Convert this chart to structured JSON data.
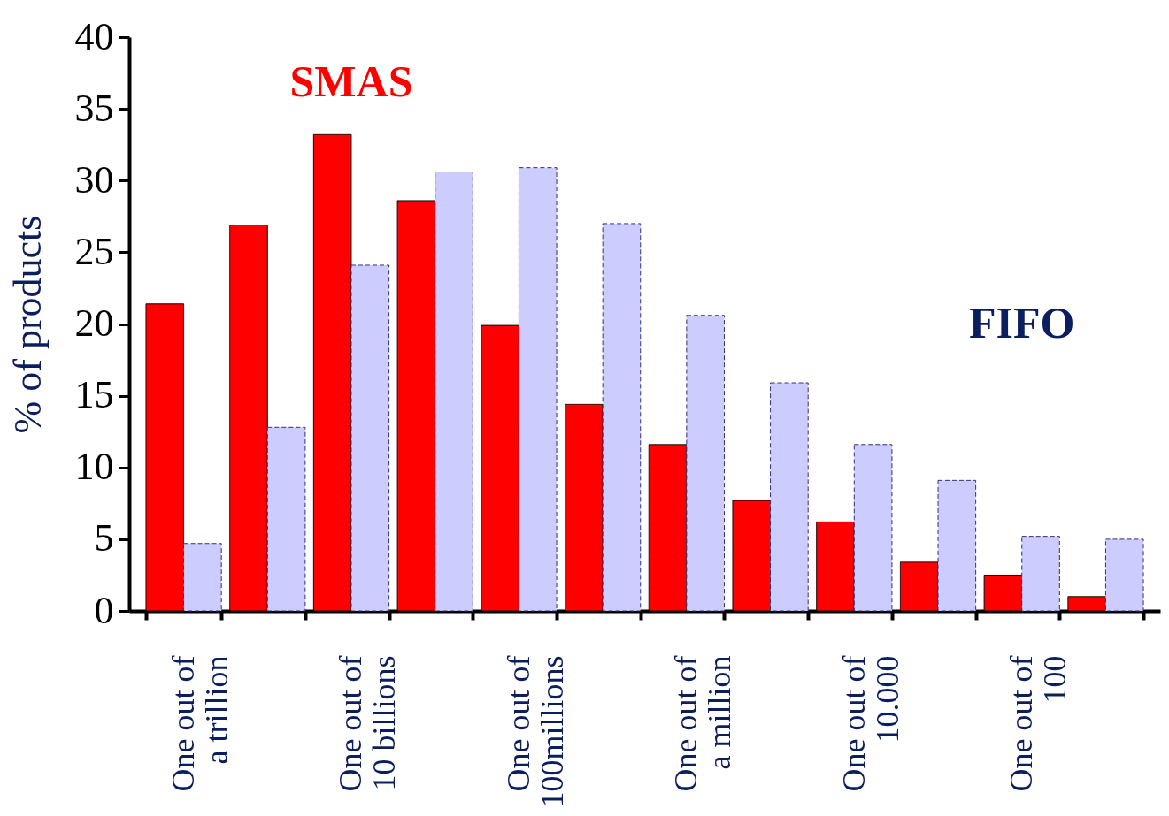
{
  "chart_data": {
    "type": "bar",
    "ylabel": "% of products",
    "categories": [
      "One out of\na trillion",
      null,
      "One out of\n10 billions",
      null,
      "One out of\n100millions",
      null,
      "One out of\na million",
      null,
      "One out of\n10.000",
      null,
      "One out of\n100",
      null
    ],
    "series": [
      {
        "name": "SMAS",
        "color": "#ff0000",
        "values": [
          21.4,
          26.9,
          33.2,
          28.6,
          19.9,
          14.4,
          11.6,
          7.7,
          6.2,
          3.4,
          2.5,
          1.0
        ]
      },
      {
        "name": "FIFO",
        "color": "#ccccff",
        "values": [
          4.7,
          12.8,
          24.1,
          30.6,
          30.9,
          27.0,
          20.6,
          15.9,
          11.6,
          9.1,
          5.2,
          5.0
        ]
      }
    ],
    "ylim": [
      0,
      40
    ],
    "yticks": [
      0,
      5,
      10,
      15,
      20,
      25,
      30,
      35,
      40
    ],
    "grid": false
  }
}
